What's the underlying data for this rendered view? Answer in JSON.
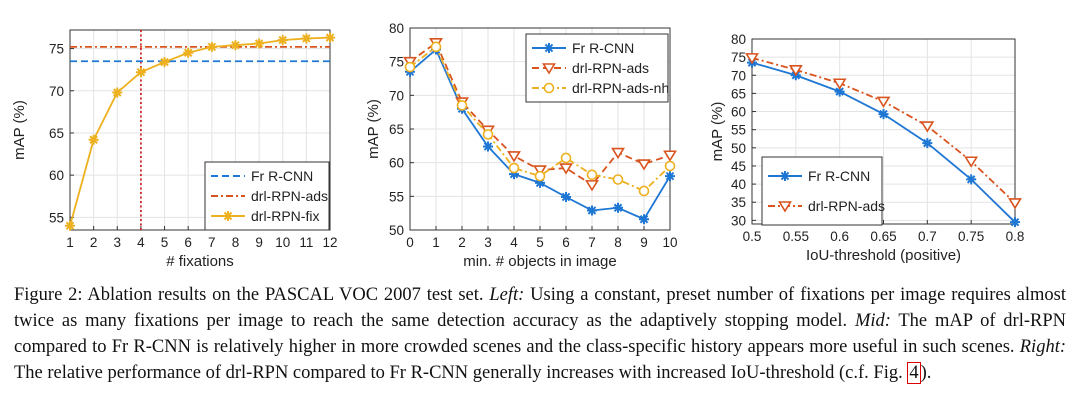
{
  "chart_data": [
    {
      "type": "line",
      "xlabel": "# fixations",
      "ylabel": "mAP (%)",
      "xlim": [
        1,
        12
      ],
      "ylim": [
        53.5,
        77.2
      ],
      "xticks": [
        "1",
        "2",
        "3",
        "4",
        "5",
        "6",
        "7",
        "8",
        "9",
        "10",
        "11",
        "12"
      ],
      "yticks": [
        "55",
        "60",
        "65",
        "70",
        "75"
      ],
      "grid": true,
      "legend_position": "bottom-right",
      "vline_x": 4,
      "vline_color": "#d62728",
      "series": [
        {
          "name": "Fr R-CNN",
          "kind": "hline",
          "value": 73.5,
          "color": "#1f77d4",
          "dash": "dashed"
        },
        {
          "name": "drl-RPN-ads",
          "kind": "hline",
          "value": 75.2,
          "color": "#d9531e",
          "dash": "dashdot"
        },
        {
          "name": "drl-RPN-fix",
          "kind": "line",
          "marker": "star",
          "color": "#edb120",
          "x": [
            1,
            2,
            3,
            4,
            5,
            6,
            7,
            8,
            9,
            10,
            11,
            12
          ],
          "values": [
            54.0,
            64.2,
            69.8,
            72.2,
            73.4,
            74.5,
            75.2,
            75.4,
            75.6,
            76.0,
            76.2,
            76.3
          ]
        }
      ]
    },
    {
      "type": "line",
      "xlabel": "min. # objects in image",
      "ylabel": "mAP (%)",
      "xlim": [
        0,
        10
      ],
      "ylim": [
        50,
        80
      ],
      "xticks": [
        "0",
        "1",
        "2",
        "3",
        "4",
        "5",
        "6",
        "7",
        "8",
        "9",
        "10"
      ],
      "yticks": [
        "50",
        "55",
        "60",
        "65",
        "70",
        "75",
        "80"
      ],
      "grid": true,
      "legend_position": "top-right",
      "series": [
        {
          "name": "Fr R-CNN",
          "kind": "line",
          "marker": "star",
          "color": "#1f77d4",
          "dash": "solid",
          "x": [
            0,
            1,
            2,
            3,
            4,
            5,
            6,
            7,
            8,
            9,
            10
          ],
          "values": [
            73.5,
            76.8,
            68.0,
            62.4,
            58.3,
            57.0,
            54.9,
            52.9,
            53.3,
            51.6,
            58.0
          ]
        },
        {
          "name": "drl-RPN-ads",
          "kind": "line",
          "marker": "triangle-down",
          "color": "#d9531e",
          "dash": "dashed",
          "x": [
            0,
            1,
            2,
            3,
            4,
            5,
            6,
            7,
            8,
            9,
            10
          ],
          "values": [
            75.0,
            77.8,
            69.0,
            64.8,
            61.0,
            58.9,
            59.2,
            56.7,
            61.5,
            59.8,
            61.1
          ]
        },
        {
          "name": "drl-RPN-ads-nh",
          "kind": "line",
          "marker": "circle",
          "color": "#edb120",
          "dash": "dashdot",
          "x": [
            0,
            1,
            2,
            3,
            4,
            5,
            6,
            7,
            8,
            9,
            10
          ],
          "values": [
            74.2,
            77.2,
            68.5,
            64.2,
            59.2,
            58.0,
            60.7,
            58.2,
            57.5,
            55.8,
            59.5
          ]
        }
      ]
    },
    {
      "type": "line",
      "xlabel": "IoU-threshold (positive)",
      "ylabel": "mAP (%)",
      "xlim": [
        0.5,
        0.8
      ],
      "ylim": [
        29,
        80
      ],
      "xticks": [
        "0.5",
        "0.55",
        "0.6",
        "0.65",
        "0.7",
        "0.75",
        "0.8"
      ],
      "yticks": [
        "30",
        "35",
        "40",
        "45",
        "50",
        "55",
        "60",
        "65",
        "70",
        "75",
        "80"
      ],
      "grid": true,
      "legend_position": "bottom-left",
      "series": [
        {
          "name": "Fr R-CNN",
          "kind": "line",
          "marker": "star",
          "color": "#1f77d4",
          "dash": "solid",
          "x": [
            0.5,
            0.55,
            0.6,
            0.65,
            0.7,
            0.75,
            0.8
          ],
          "values": [
            73.5,
            70.0,
            65.5,
            59.3,
            51.3,
            41.3,
            29.5
          ]
        },
        {
          "name": "drl-RPN-ads",
          "kind": "line",
          "marker": "triangle-down",
          "color": "#d9531e",
          "dash": "dashdot",
          "x": [
            0.5,
            0.55,
            0.6,
            0.65,
            0.7,
            0.75,
            0.8
          ],
          "values": [
            74.8,
            71.5,
            67.8,
            62.8,
            56.0,
            46.3,
            34.8
          ]
        }
      ]
    }
  ],
  "caption": {
    "label": "Figure 2:",
    "t1": " Ablation results on the PASCAL VOC 2007 test set. ",
    "left": "Left:",
    "t2": " Using a constant, preset number of fixations per image requires almost twice as many fixations per image to reach the same detection accuracy as the adaptively stopping model. ",
    "mid": "Mid:",
    "t3": " The mAP of drl-RPN compared to Fr R-CNN is relatively higher in more crowded scenes and the class-specific history appears more useful in such scenes. ",
    "right": "Right:",
    "t4": " The relative performance of drl-RPN compared to Fr R-CNN generally increases with increased IoU-threshold (c.f. Fig. ",
    "ref": "4",
    "t5": ")."
  }
}
